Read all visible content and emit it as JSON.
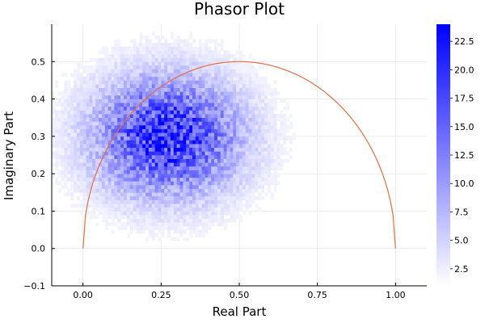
{
  "chart_data": {
    "type": "heatmap",
    "title": "Phasor Plot",
    "xlabel": "Real Part",
    "ylabel": "Imaginary Part",
    "xlim": [
      -0.1,
      1.1
    ],
    "ylim": [
      -0.1,
      0.6
    ],
    "x_ticks": [
      0.0,
      0.25,
      0.5,
      0.75,
      1.0
    ],
    "x_tick_labels": [
      "0.00",
      "0.25",
      "0.50",
      "0.75",
      "1.00"
    ],
    "y_ticks": [
      -0.1,
      0.0,
      0.1,
      0.2,
      0.3,
      0.4,
      0.5
    ],
    "y_tick_labels": [
      "−0.1",
      "0.0",
      "0.1",
      "0.2",
      "0.3",
      "0.4",
      "0.5"
    ],
    "grid": true,
    "histogram": {
      "description_of_density": "2D histogram of phasor points, densest near real 0.27, imaginary 0.30",
      "peak_center": [
        0.27,
        0.3
      ],
      "spread": [
        0.16,
        0.11
      ],
      "count_range": [
        0,
        24
      ],
      "bin_size": [
        0.01,
        0.01
      ]
    },
    "colorbar": {
      "min": 1,
      "max": 24,
      "ticks": [
        2.5,
        5.0,
        7.5,
        10.0,
        12.5,
        15.0,
        17.5,
        20.0,
        22.5
      ],
      "tick_labels": [
        "2.5",
        "5.0",
        "7.5",
        "10.0",
        "12.5",
        "15.0",
        "17.5",
        "20.0",
        "22.5"
      ],
      "color_low": "#ffffff",
      "color_high": "#0000ff"
    },
    "series": [
      {
        "type": "line",
        "color": "#e26f46",
        "x_center": 0.5,
        "radius": 0.5,
        "x_range": [
          0.0,
          1.0
        ]
      }
    ]
  }
}
